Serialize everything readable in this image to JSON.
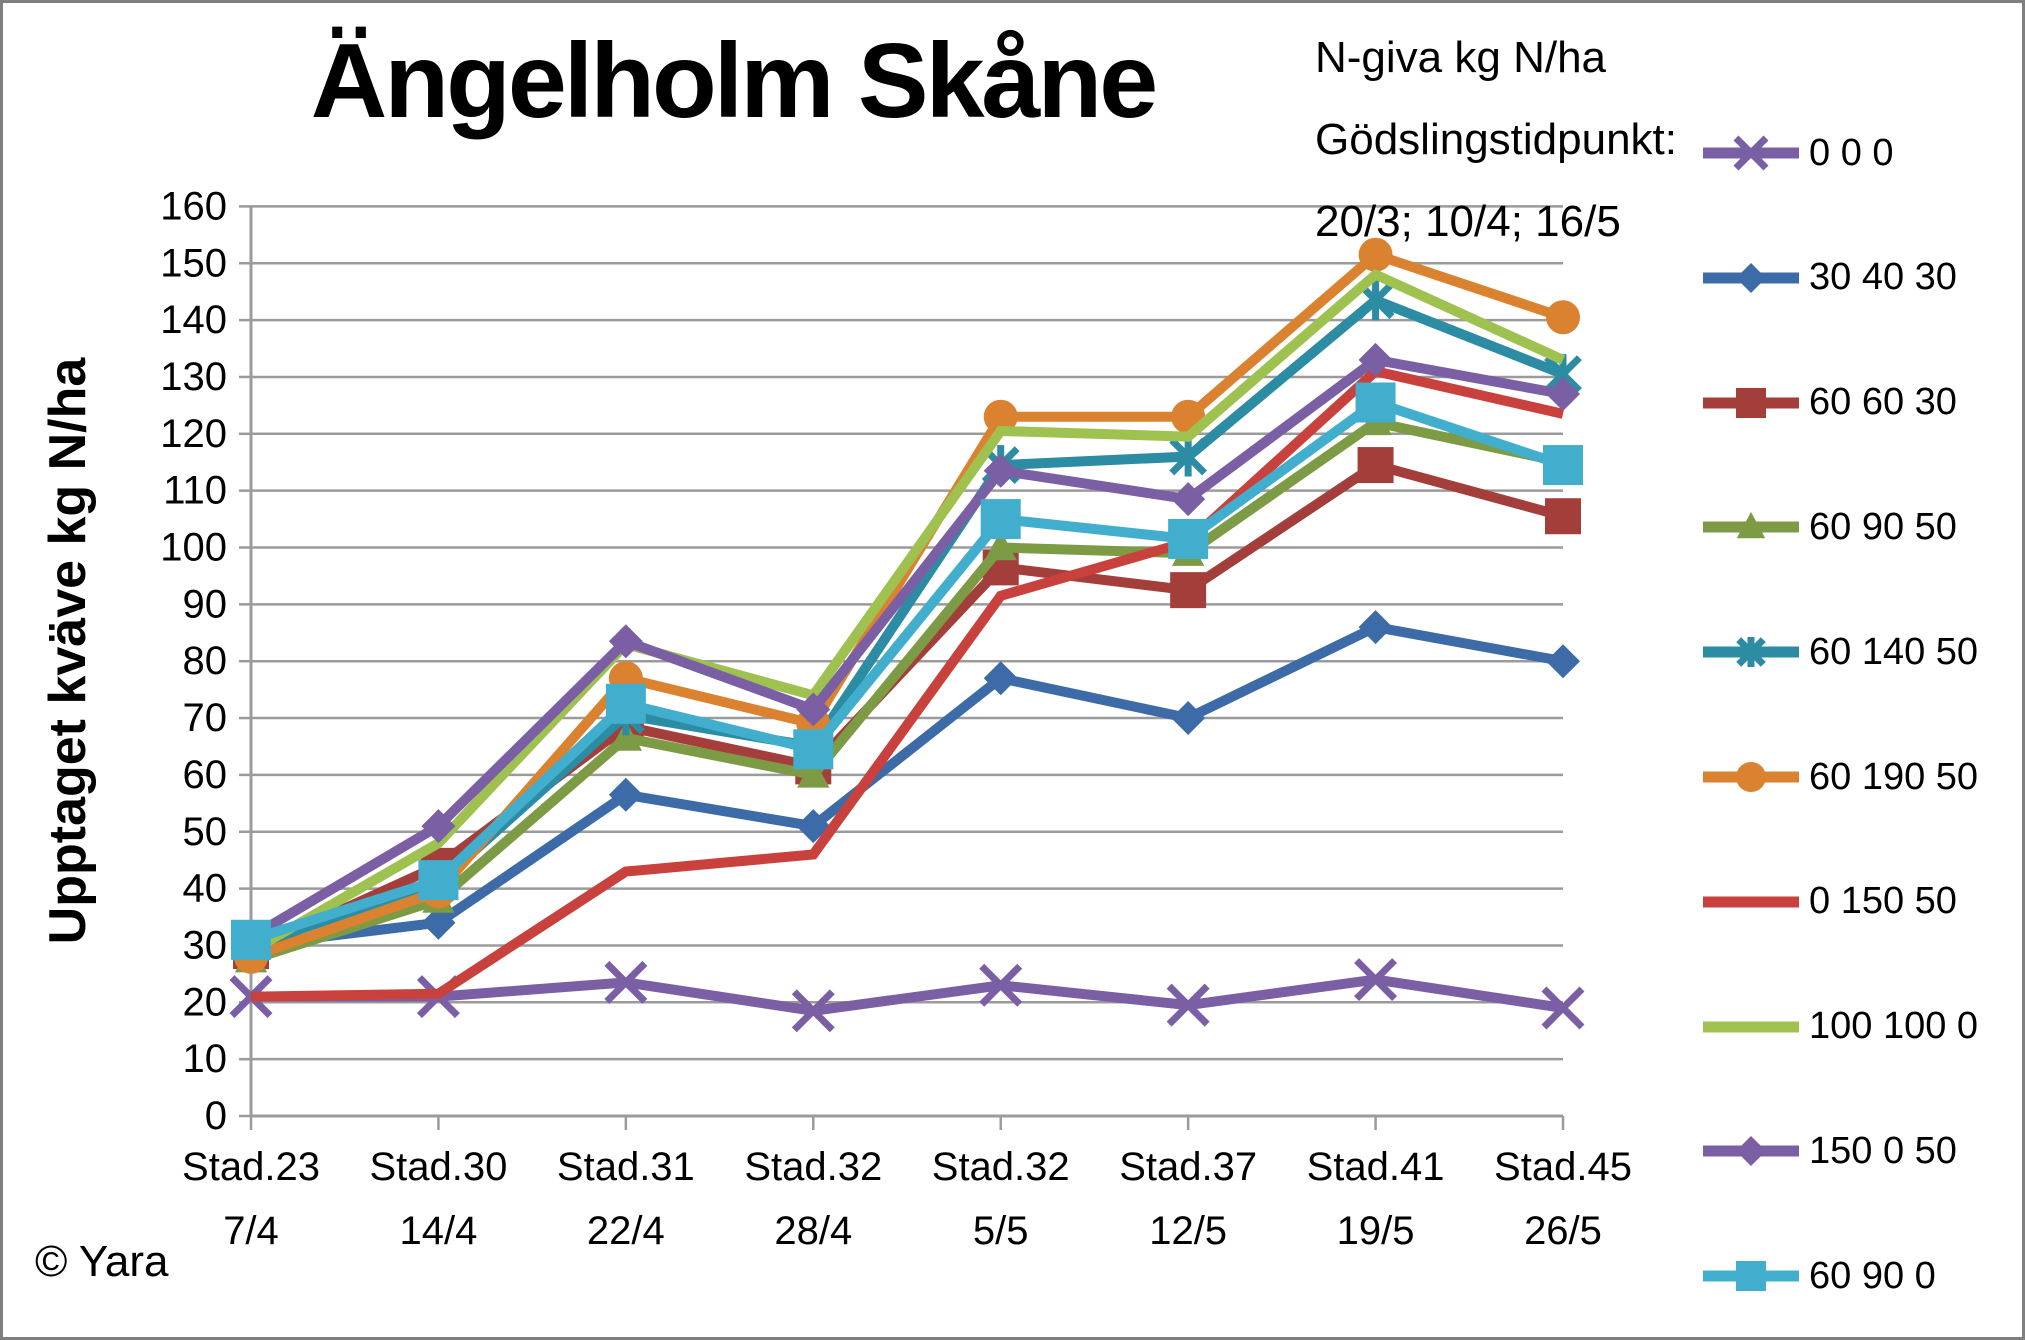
{
  "title": "Ängelholm Skåne",
  "copyright": "© Yara",
  "legend_header": {
    "line1": "N-giva kg N/ha",
    "line2": "Gödslingstidpunkt:",
    "line3": "20/3; 10/4; 16/5"
  },
  "chart_data": {
    "type": "line",
    "title": "Ängelholm Skåne",
    "xlabel": "",
    "ylabel": "Upptaget kväve kg N/ha",
    "ylim": [
      0,
      160
    ],
    "yticks": [
      0,
      10,
      20,
      30,
      40,
      50,
      60,
      70,
      80,
      90,
      100,
      110,
      120,
      130,
      140,
      150,
      160
    ],
    "grid": true,
    "legend_position": "right",
    "grid_color": "#9b9b9b",
    "categories": [
      {
        "stage": "Stad.23",
        "date": "7/4"
      },
      {
        "stage": "Stad.30",
        "date": "14/4"
      },
      {
        "stage": "Stad.31",
        "date": "22/4"
      },
      {
        "stage": "Stad.32",
        "date": "28/4"
      },
      {
        "stage": "Stad.32",
        "date": "5/5"
      },
      {
        "stage": "Stad.37",
        "date": "12/5"
      },
      {
        "stage": "Stad.41",
        "date": "19/5"
      },
      {
        "stage": "Stad.45",
        "date": "26/5"
      }
    ],
    "series": [
      {
        "name": "0 0 0",
        "color": "#7b5fa5",
        "marker": "x",
        "values": [
          21,
          21,
          23.5,
          18.5,
          23,
          19.5,
          24,
          19
        ]
      },
      {
        "name": "30 40 30",
        "color": "#3d6ba8",
        "marker": "diamond",
        "values": [
          30,
          34,
          56.5,
          51,
          77,
          70,
          86,
          80
        ]
      },
      {
        "name": "60 60 30",
        "color": "#a33e3b",
        "marker": "square",
        "values": [
          29,
          44,
          68.5,
          61.5,
          96.5,
          92.5,
          114.5,
          105.5
        ]
      },
      {
        "name": "60 90 50",
        "color": "#7d9b44",
        "marker": "triangle",
        "values": [
          27.5,
          38,
          66.5,
          60,
          100,
          99,
          122,
          115
        ]
      },
      {
        "name": "60 140 50",
        "color": "#2b8ca4",
        "marker": "asterisk",
        "values": [
          30,
          41,
          70.5,
          65,
          114.5,
          116,
          143.5,
          130.5
        ]
      },
      {
        "name": "60 190 50",
        "color": "#da8230",
        "marker": "circle",
        "values": [
          28,
          39.5,
          77,
          69,
          123,
          123,
          151.5,
          140.5
        ]
      },
      {
        "name": "0 150 50",
        "color": "#c8413d",
        "marker": "none",
        "values": [
          21,
          21.5,
          43,
          46,
          91.5,
          101,
          131,
          123.5
        ]
      },
      {
        "name": "100 100 0",
        "color": "#9ec14f",
        "marker": "none",
        "values": [
          29,
          48,
          83,
          74,
          120.5,
          119.5,
          148,
          133
        ]
      },
      {
        "name": "150 0 50",
        "color": "#7b5fa5",
        "marker": "diamond",
        "values": [
          31.5,
          51,
          83.5,
          71.5,
          113.5,
          108.5,
          133,
          127
        ]
      },
      {
        "name": "60 90 0",
        "color": "#40aecc",
        "marker": "square",
        "values": [
          31,
          41.5,
          72.5,
          64.5,
          105,
          101.5,
          125.5,
          114.5
        ]
      }
    ]
  }
}
